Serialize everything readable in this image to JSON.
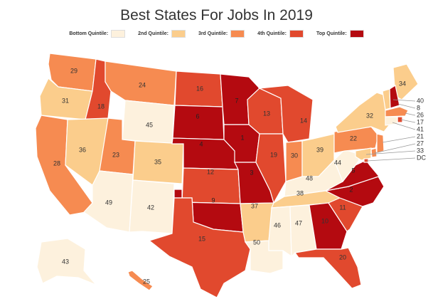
{
  "title": "Best States For Jobs In 2019",
  "legend": [
    {
      "label": "Bottom Quintile:",
      "color": "#fdf1dd"
    },
    {
      "label": "2nd Quintile:",
      "color": "#fbcd8c"
    },
    {
      "label": "3rd Quintile:",
      "color": "#f68b51"
    },
    {
      "label": "4th Quintile:",
      "color": "#e1492e"
    },
    {
      "label": "Top Quintile:",
      "color": "#b40a10"
    }
  ],
  "states": [
    {
      "id": "WA",
      "rank": "29"
    },
    {
      "id": "OR",
      "rank": "31"
    },
    {
      "id": "CA",
      "rank": "28"
    },
    {
      "id": "ID",
      "rank": "18"
    },
    {
      "id": "NV",
      "rank": "36"
    },
    {
      "id": "MT",
      "rank": "24"
    },
    {
      "id": "WY",
      "rank": "45"
    },
    {
      "id": "UT",
      "rank": "23"
    },
    {
      "id": "CO",
      "rank": "35"
    },
    {
      "id": "AZ",
      "rank": "49"
    },
    {
      "id": "NM",
      "rank": "42"
    },
    {
      "id": "ND",
      "rank": "16"
    },
    {
      "id": "SD",
      "rank": "6"
    },
    {
      "id": "NE",
      "rank": "4"
    },
    {
      "id": "KS",
      "rank": "12"
    },
    {
      "id": "OK",
      "rank": "9"
    },
    {
      "id": "TX",
      "rank": "15"
    },
    {
      "id": "MN",
      "rank": "7"
    },
    {
      "id": "IA",
      "rank": "1"
    },
    {
      "id": "MO",
      "rank": "3"
    },
    {
      "id": "AR",
      "rank": "37"
    },
    {
      "id": "LA",
      "rank": "50"
    },
    {
      "id": "WI",
      "rank": "13"
    },
    {
      "id": "IL",
      "rank": "19"
    },
    {
      "id": "MI",
      "rank": "14"
    },
    {
      "id": "IN",
      "rank": "30"
    },
    {
      "id": "OH",
      "rank": "39"
    },
    {
      "id": "KY",
      "rank": "48"
    },
    {
      "id": "TN",
      "rank": "38"
    },
    {
      "id": "MS",
      "rank": "46"
    },
    {
      "id": "AL",
      "rank": "47"
    },
    {
      "id": "GA",
      "rank": "10"
    },
    {
      "id": "FL",
      "rank": "20"
    },
    {
      "id": "SC",
      "rank": "11"
    },
    {
      "id": "NC",
      "rank": "2"
    },
    {
      "id": "VA",
      "rank": "5"
    },
    {
      "id": "WV",
      "rank": "44"
    },
    {
      "id": "PA",
      "rank": "22"
    },
    {
      "id": "NY",
      "rank": "32"
    },
    {
      "id": "ME",
      "rank": "34"
    },
    {
      "id": "VT",
      "rank": "40"
    },
    {
      "id": "NH",
      "rank": "8"
    },
    {
      "id": "MA",
      "rank": "26"
    },
    {
      "id": "RI",
      "rank": "17"
    },
    {
      "id": "CT",
      "rank": "41"
    },
    {
      "id": "NJ",
      "rank": "21"
    },
    {
      "id": "DE",
      "rank": "27"
    },
    {
      "id": "MD",
      "rank": "33"
    },
    {
      "id": "DC",
      "rank": "DC"
    },
    {
      "id": "AK",
      "rank": "43"
    },
    {
      "id": "HI",
      "rank": "25"
    }
  ]
}
